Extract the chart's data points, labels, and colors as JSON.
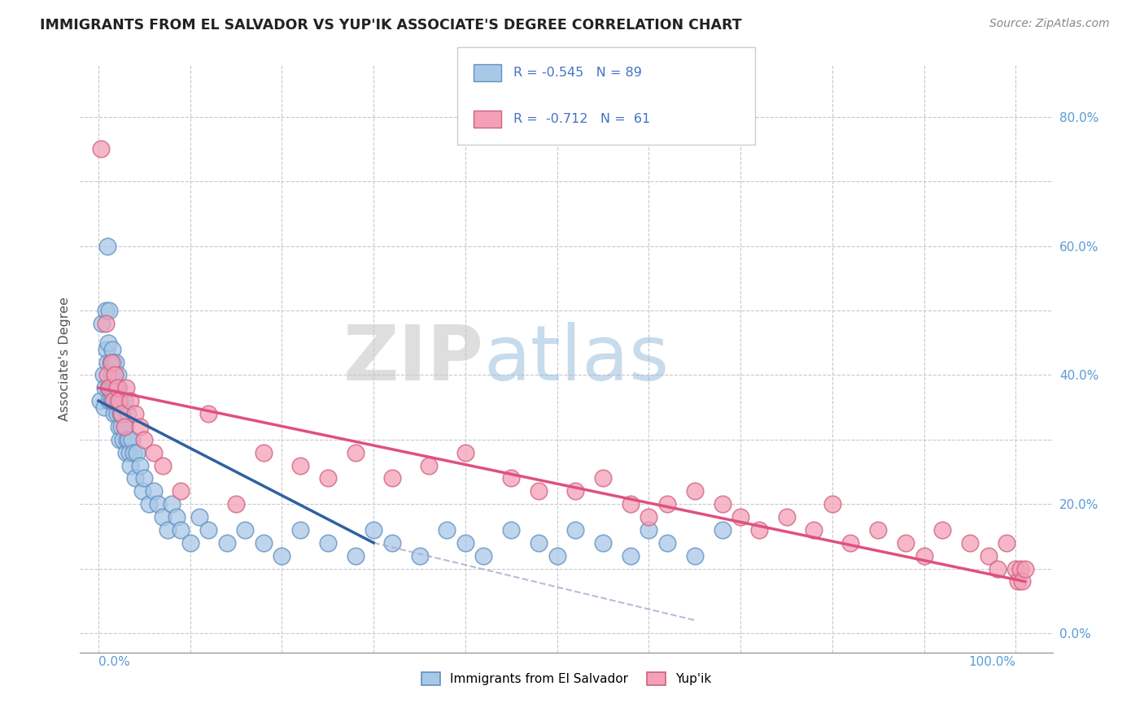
{
  "title": "IMMIGRANTS FROM EL SALVADOR VS YUP'IK ASSOCIATE'S DEGREE CORRELATION CHART",
  "source": "Source: ZipAtlas.com",
  "ylabel": "Associate's Degree",
  "legend_label1": "Immigrants from El Salvador",
  "legend_label2": "Yup'ik",
  "r1": -0.545,
  "n1": 89,
  "r2": -0.712,
  "n2": 61,
  "blue_color": "#A8C8E8",
  "pink_color": "#F4A0B8",
  "blue_edge_color": "#6090C0",
  "pink_edge_color": "#D06080",
  "blue_line_color": "#3060A0",
  "pink_line_color": "#E05080",
  "dashed_line_color": "#AAAACC",
  "title_color": "#222222",
  "axis_label_color": "#5B9BD5",
  "legend_r_color": "#4472C4",
  "blue_scatter_x": [
    0.2,
    0.4,
    0.5,
    0.6,
    0.7,
    0.8,
    0.9,
    1.0,
    1.0,
    1.1,
    1.1,
    1.2,
    1.2,
    1.3,
    1.3,
    1.4,
    1.4,
    1.5,
    1.5,
    1.6,
    1.6,
    1.7,
    1.7,
    1.8,
    1.8,
    1.9,
    1.9,
    2.0,
    2.0,
    2.1,
    2.1,
    2.2,
    2.2,
    2.3,
    2.3,
    2.4,
    2.5,
    2.5,
    2.6,
    2.7,
    2.8,
    2.9,
    3.0,
    3.1,
    3.2,
    3.3,
    3.4,
    3.5,
    3.6,
    3.8,
    4.0,
    4.2,
    4.5,
    4.8,
    5.0,
    5.5,
    6.0,
    6.5,
    7.0,
    7.5,
    8.0,
    8.5,
    9.0,
    10.0,
    11.0,
    12.0,
    14.0,
    16.0,
    18.0,
    20.0,
    22.0,
    25.0,
    28.0,
    30.0,
    32.0,
    35.0,
    38.0,
    40.0,
    42.0,
    45.0,
    48.0,
    50.0,
    52.0,
    55.0,
    58.0,
    60.0,
    62.0,
    65.0,
    68.0
  ],
  "blue_scatter_y": [
    36.0,
    48.0,
    40.0,
    35.0,
    38.0,
    50.0,
    44.0,
    42.0,
    60.0,
    38.0,
    45.0,
    50.0,
    36.0,
    42.0,
    38.0,
    36.0,
    40.0,
    44.0,
    38.0,
    42.0,
    36.0,
    38.0,
    34.0,
    36.0,
    40.0,
    42.0,
    38.0,
    36.0,
    34.0,
    40.0,
    36.0,
    32.0,
    38.0,
    36.0,
    30.0,
    34.0,
    36.0,
    32.0,
    34.0,
    30.0,
    36.0,
    32.0,
    28.0,
    30.0,
    34.0,
    30.0,
    28.0,
    26.0,
    30.0,
    28.0,
    24.0,
    28.0,
    26.0,
    22.0,
    24.0,
    20.0,
    22.0,
    20.0,
    18.0,
    16.0,
    20.0,
    18.0,
    16.0,
    14.0,
    18.0,
    16.0,
    14.0,
    16.0,
    14.0,
    12.0,
    16.0,
    14.0,
    12.0,
    16.0,
    14.0,
    12.0,
    16.0,
    14.0,
    12.0,
    16.0,
    14.0,
    12.0,
    16.0,
    14.0,
    12.0,
    16.0,
    14.0,
    12.0,
    16.0
  ],
  "pink_scatter_x": [
    0.3,
    0.8,
    1.0,
    1.2,
    1.4,
    1.6,
    1.8,
    2.0,
    2.2,
    2.5,
    2.8,
    3.0,
    3.5,
    4.0,
    4.5,
    5.0,
    6.0,
    7.0,
    9.0,
    12.0,
    15.0,
    18.0,
    22.0,
    25.0,
    28.0,
    32.0,
    36.0,
    40.0,
    45.0,
    48.0,
    52.0,
    55.0,
    58.0,
    60.0,
    62.0,
    65.0,
    68.0,
    70.0,
    72.0,
    75.0,
    78.0,
    80.0,
    82.0,
    85.0,
    88.0,
    90.0,
    92.0,
    95.0,
    97.0,
    98.0,
    99.0,
    100.0,
    100.2,
    100.5,
    100.7,
    101.0
  ],
  "pink_scatter_y": [
    75.0,
    48.0,
    40.0,
    38.0,
    42.0,
    36.0,
    40.0,
    38.0,
    36.0,
    34.0,
    32.0,
    38.0,
    36.0,
    34.0,
    32.0,
    30.0,
    28.0,
    26.0,
    22.0,
    34.0,
    20.0,
    28.0,
    26.0,
    24.0,
    28.0,
    24.0,
    26.0,
    28.0,
    24.0,
    22.0,
    22.0,
    24.0,
    20.0,
    18.0,
    20.0,
    22.0,
    20.0,
    18.0,
    16.0,
    18.0,
    16.0,
    20.0,
    14.0,
    16.0,
    14.0,
    12.0,
    16.0,
    14.0,
    12.0,
    10.0,
    14.0,
    10.0,
    8.0,
    10.0,
    8.0,
    10.0
  ],
  "blue_line_x": [
    0.0,
    30.0
  ],
  "blue_line_y": [
    36.0,
    14.0
  ],
  "pink_line_x": [
    0.0,
    101.0
  ],
  "pink_line_y": [
    38.0,
    8.0
  ],
  "dashed_line_x": [
    30.0,
    65.0
  ],
  "dashed_line_y": [
    14.0,
    2.0
  ],
  "xlim": [
    -2.0,
    104.0
  ],
  "ylim": [
    -3.0,
    88.0
  ],
  "ytick_vals": [
    0,
    10,
    20,
    30,
    40,
    50,
    60,
    70,
    80
  ],
  "xtick_grid_vals": [
    0,
    10,
    20,
    30,
    40,
    50,
    60,
    70,
    80,
    90,
    100
  ],
  "right_yticks": [
    0,
    20,
    40,
    60,
    80
  ],
  "right_yticklabels": [
    "0.0%",
    "20.0%",
    "40.0%",
    "60.0%",
    "80.0%"
  ]
}
